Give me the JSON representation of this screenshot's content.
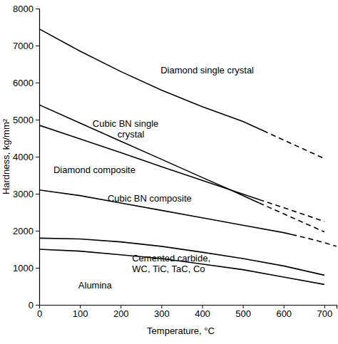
{
  "chart_data": {
    "type": "line",
    "x_label": "Temperature, °C",
    "y_label": "Hardness, kg/mm²",
    "xlim": [
      0,
      730
    ],
    "ylim": [
      0,
      8000
    ],
    "xticks": [
      0,
      100,
      200,
      300,
      400,
      500,
      600,
      700
    ],
    "yticks": [
      0,
      1000,
      2000,
      3000,
      4000,
      5000,
      6000,
      7000,
      8000
    ],
    "series": [
      {
        "name": "Diamond single crystal",
        "color": "#000000",
        "line_style": "solid",
        "x": [
          0,
          100,
          200,
          300,
          400,
          500,
          550
        ],
        "values": [
          7450,
          6850,
          6300,
          5800,
          5350,
          4950,
          4700
        ]
      },
      {
        "color": "#000000",
        "line_style": "dashed",
        "x": [
          550,
          600,
          650,
          700
        ],
        "values": [
          4700,
          4450,
          4200,
          3950
        ]
      },
      {
        "name": "Cubic BN single\ncrystal",
        "color": "#000000",
        "line_style": "solid",
        "x": [
          0,
          100,
          200,
          300,
          400,
          470,
          540
        ],
        "values": [
          5400,
          4910,
          4420,
          3930,
          3440,
          3100,
          2750
        ]
      },
      {
        "color": "#000000",
        "line_style": "dashed",
        "x": [
          540,
          620,
          700
        ],
        "values": [
          2750,
          2360,
          1970
        ]
      },
      {
        "name": "Diamond composite",
        "color": "#000000",
        "line_style": "solid",
        "x": [
          0,
          100,
          200,
          300,
          400,
          470,
          540
        ],
        "values": [
          4850,
          4480,
          4110,
          3730,
          3360,
          3100,
          2840
        ]
      },
      {
        "color": "#000000",
        "line_style": "dashed",
        "x": [
          540,
          620,
          700
        ],
        "values": [
          2840,
          2550,
          2250
        ]
      },
      {
        "name": "Cubic BN composite",
        "color": "#000000",
        "line_style": "solid",
        "x": [
          0,
          100,
          200,
          300,
          400,
          500,
          600,
          620
        ],
        "values": [
          3100,
          2950,
          2750,
          2550,
          2350,
          2150,
          1950,
          1900
        ]
      },
      {
        "color": "#000000",
        "line_style": "dashed",
        "x": [
          620,
          680,
          730
        ],
        "values": [
          1900,
          1740,
          1580
        ]
      },
      {
        "name": "Cemented carbide,\nWC, TiC, TaC, Co",
        "color": "#000000",
        "line_style": "solid",
        "x": [
          0,
          100,
          200,
          300,
          400,
          500,
          600,
          700
        ],
        "values": [
          1800,
          1780,
          1700,
          1580,
          1420,
          1250,
          1050,
          800
        ]
      },
      {
        "name": "Alumina",
        "color": "#000000",
        "line_style": "solid",
        "x": [
          0,
          100,
          200,
          300,
          400,
          500,
          600,
          700
        ],
        "values": [
          1500,
          1450,
          1350,
          1250,
          1100,
          950,
          750,
          550
        ]
      }
    ]
  }
}
